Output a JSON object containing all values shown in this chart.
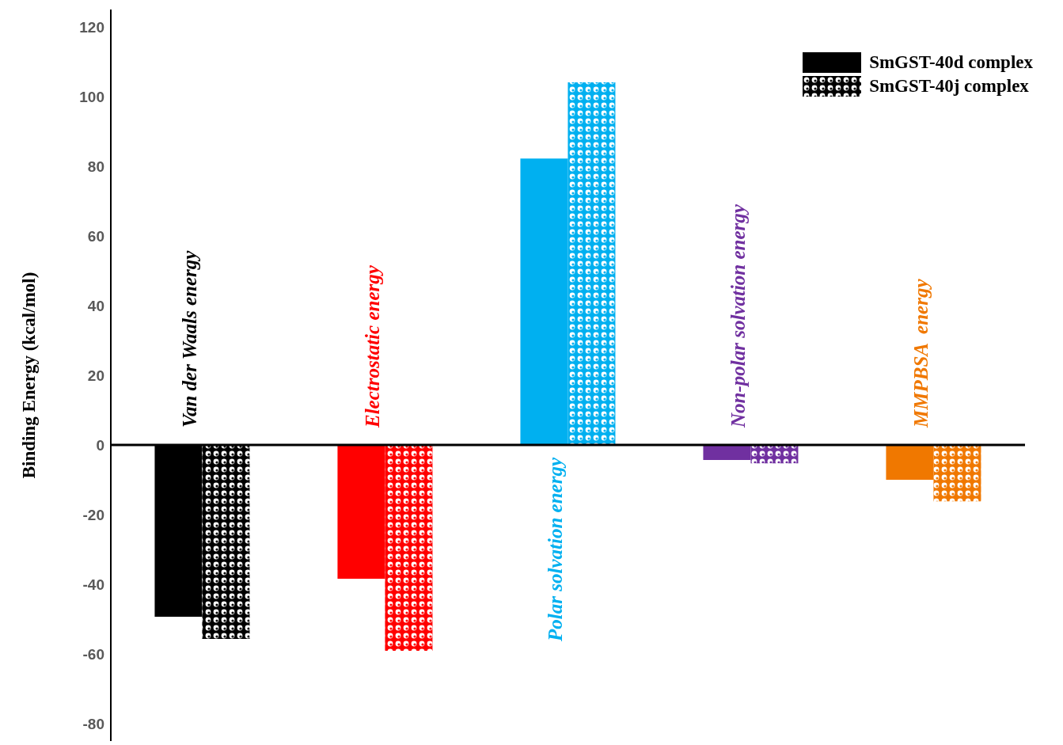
{
  "chart_data": {
    "type": "bar",
    "ylabel": "Binding Energy (kcal/mol)",
    "categories": [
      "Van der Waals energy",
      "Electrostatic energy",
      "Polar solvation energy",
      "Non-polar solvation energy",
      "MMPBSA  energy"
    ],
    "series": [
      {
        "name": "SmGST-40d complex",
        "colors": [
          "#000000",
          "#ff0000",
          "#00b0f0",
          "#7030a0",
          "#f07800"
        ],
        "values": [
          -49.3,
          -38.4,
          82.2,
          -4.3,
          -10
        ]
      },
      {
        "name": "SmGST-40j complex",
        "colors": [
          "#000000",
          "#ff0000",
          "#00b0f0",
          "#7030a0",
          "#f07800"
        ],
        "values": [
          -55.7,
          -59.1,
          104.1,
          -5.3,
          -16.2
        ]
      }
    ],
    "ylim": [
      -85,
      125
    ],
    "yticks": [
      -80,
      -60,
      -40,
      -20,
      0,
      20,
      40,
      60,
      80,
      100,
      120
    ],
    "legend": "top right"
  }
}
